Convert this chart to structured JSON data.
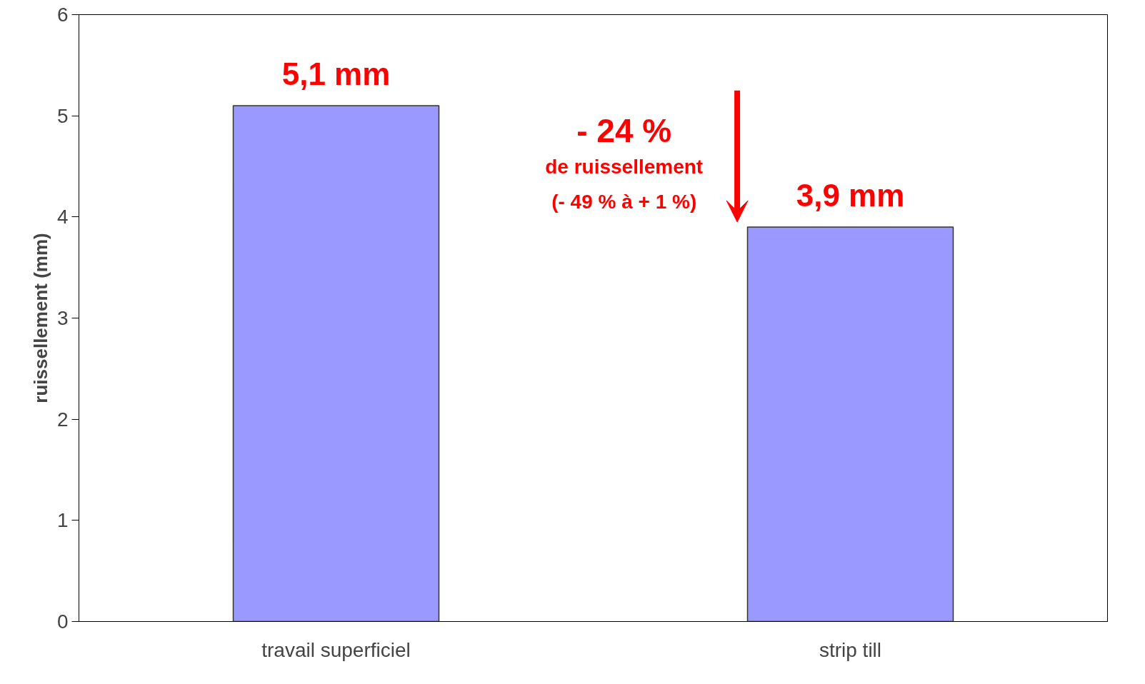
{
  "chart_data": {
    "type": "bar",
    "ylabel": "ruissellement (mm)",
    "categories": [
      "travail superficiel",
      "strip till"
    ],
    "values": [
      5.1,
      3.9
    ],
    "color": "#9999ff",
    "value_labels": [
      "5,1 mm",
      "3,9 mm"
    ],
    "ylim": [
      0,
      6
    ],
    "yticks": [
      0,
      1,
      2,
      3,
      4,
      5,
      6
    ],
    "grid": false,
    "annotations": [
      "- 24 %",
      "de ruissellement",
      "(- 49 % à + 1 %)"
    ]
  }
}
